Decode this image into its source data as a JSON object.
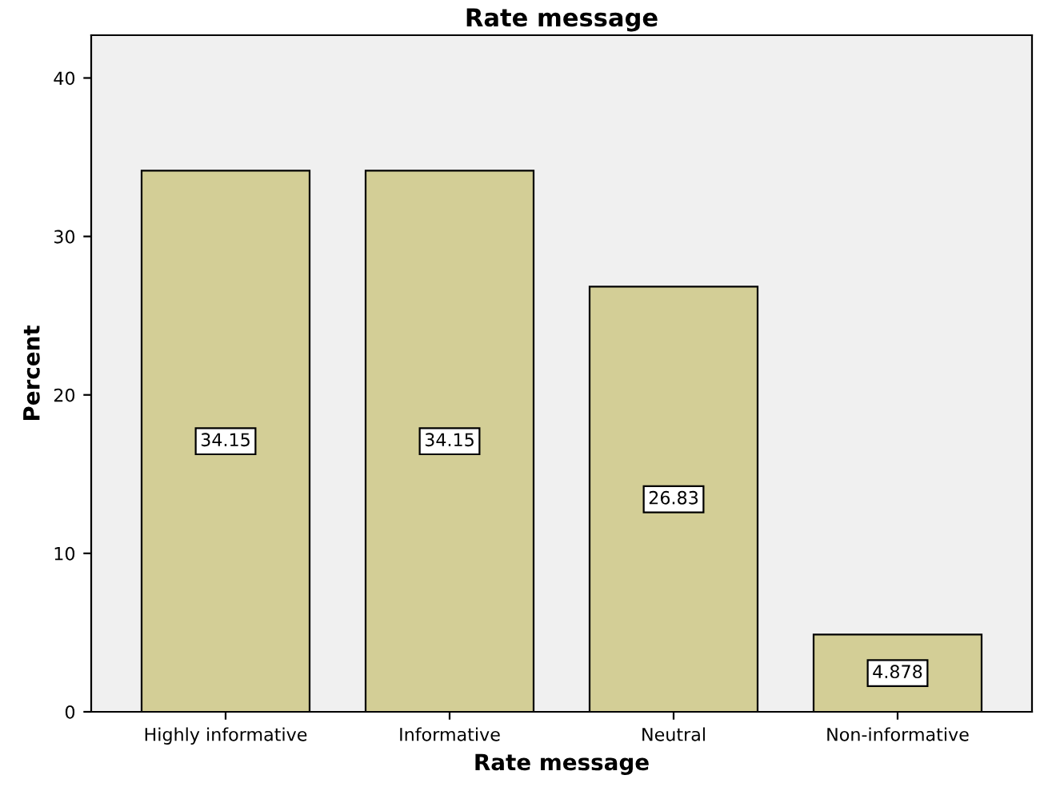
{
  "chart_data": {
    "type": "bar",
    "title": "Rate message",
    "xlabel": "Rate message",
    "ylabel": "Percent",
    "categories": [
      "Highly informative",
      "Informative",
      "Neutral",
      "Non-informative"
    ],
    "values": [
      34.15,
      34.15,
      26.83,
      4.878
    ],
    "color": "#d3ce96",
    "ylim": [
      0,
      42.7
    ],
    "yticks": [
      0,
      10,
      20,
      30,
      40
    ],
    "grid": false,
    "data_labels": true
  }
}
